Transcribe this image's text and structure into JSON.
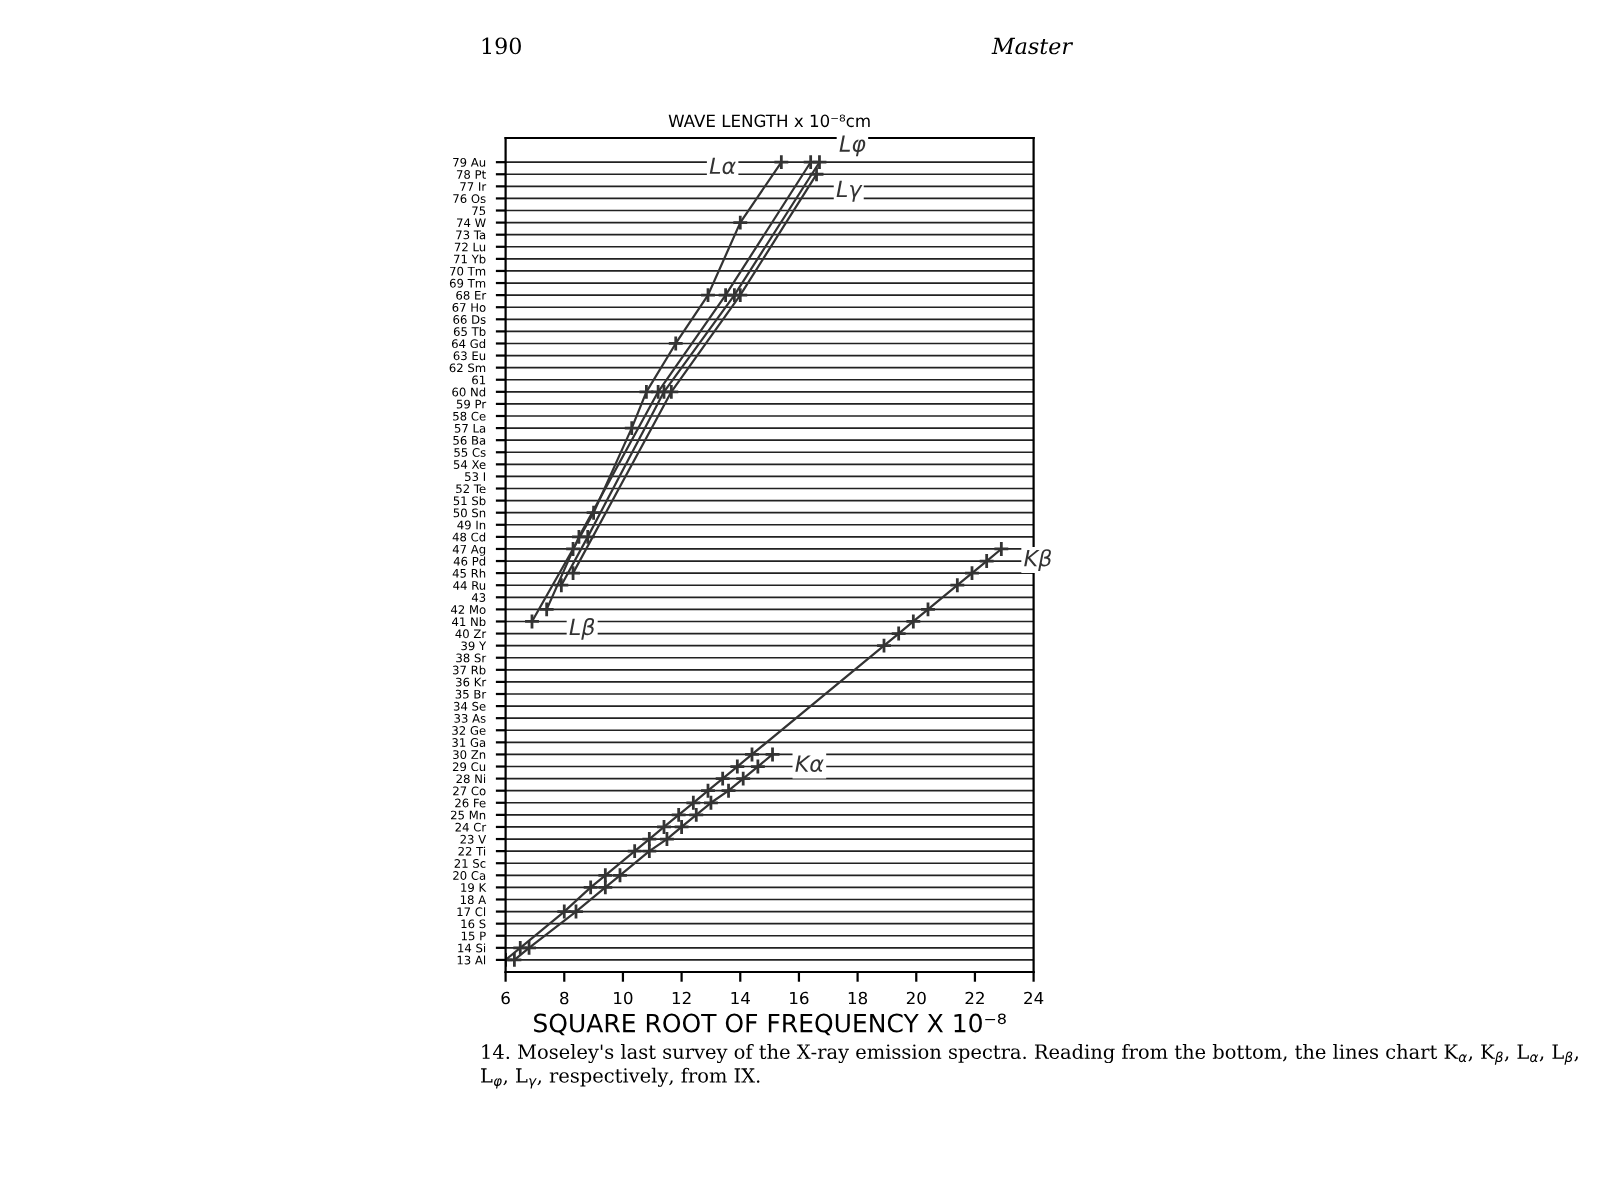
{
  "chart_data": {
    "type": "line",
    "xlabel": "SQUARE ROOT OF FREQUENCY X 10⁻⁸",
    "x2label": "WAVE LENGTH x 10⁻⁸cm",
    "annotations": [
      "190",
      "Master",
      "14. Moseley's last survey of the X-ray emission spectra. Reading from the bottom, the lines chart K$_{α}$, K$_{β}$, L$_{α}$, L$_{β}$, L$_{φ}$, L$_{γ}$, respectively, from IX."
    ],
    "xlim": [
      6,
      24
    ],
    "xticks": [
      6,
      8,
      10,
      12,
      14,
      16,
      18,
      20,
      22,
      24
    ],
    "ylim": [
      12,
      81
    ],
    "yticks": [
      {
        "value": 13,
        "label": "13 Al"
      },
      {
        "value": 14,
        "label": "14 Si"
      },
      {
        "value": 15,
        "label": "15 P"
      },
      {
        "value": 16,
        "label": "16 S"
      },
      {
        "value": 17,
        "label": "17 Cl"
      },
      {
        "value": 18,
        "label": "18 A"
      },
      {
        "value": 19,
        "label": "19 K"
      },
      {
        "value": 20,
        "label": "20 Ca"
      },
      {
        "value": 21,
        "label": "21 Sc"
      },
      {
        "value": 22,
        "label": "22 Ti"
      },
      {
        "value": 23,
        "label": "23 V"
      },
      {
        "value": 24,
        "label": "24 Cr"
      },
      {
        "value": 25,
        "label": "25 Mn"
      },
      {
        "value": 26,
        "label": "26 Fe"
      },
      {
        "value": 27,
        "label": "27 Co"
      },
      {
        "value": 28,
        "label": "28 Ni"
      },
      {
        "value": 29,
        "label": "29 Cu"
      },
      {
        "value": 30,
        "label": "30 Zn"
      },
      {
        "value": 31,
        "label": "31 Ga"
      },
      {
        "value": 32,
        "label": "32 Ge"
      },
      {
        "value": 33,
        "label": "33 As"
      },
      {
        "value": 34,
        "label": "34 Se"
      },
      {
        "value": 35,
        "label": "35 Br"
      },
      {
        "value": 36,
        "label": "36 Kr"
      },
      {
        "value": 37,
        "label": "37 Rb"
      },
      {
        "value": 38,
        "label": "38 Sr"
      },
      {
        "value": 39,
        "label": "39 Y"
      },
      {
        "value": 40,
        "label": "40 Zr"
      },
      {
        "value": 41,
        "label": "41 Nb"
      },
      {
        "value": 42,
        "label": "42 Mo"
      },
      43,
      {
        "value": 44,
        "label": "44 Ru"
      },
      {
        "value": 45,
        "label": "45 Rh"
      },
      {
        "value": 46,
        "label": "46 Pd"
      },
      {
        "value": 47,
        "label": "47 Ag"
      },
      {
        "value": 48,
        "label": "48 Cd"
      },
      {
        "value": 49,
        "label": "49 In"
      },
      {
        "value": 50,
        "label": "50 Sn"
      },
      {
        "value": 51,
        "label": "51 Sb"
      },
      {
        "value": 52,
        "label": "52 Te"
      },
      {
        "value": 53,
        "label": "53 I"
      },
      {
        "value": 54,
        "label": "54 Xe"
      },
      {
        "value": 55,
        "label": "55 Cs"
      },
      {
        "value": 56,
        "label": "56 Ba"
      },
      {
        "value": 57,
        "label": "57 La"
      },
      {
        "value": 58,
        "label": "58 Ce"
      },
      {
        "value": 59,
        "label": "59 Pr"
      },
      {
        "value": 60,
        "label": "60 Nd"
      },
      61,
      {
        "value": 62,
        "label": "62 Sm"
      },
      {
        "value": 63,
        "label": "63 Eu"
      },
      {
        "value": 64,
        "label": "64 Gd"
      },
      {
        "value": 65,
        "label": "65 Tb"
      },
      {
        "value": 66,
        "label": "66 Ds"
      },
      {
        "value": 67,
        "label": "67 Ho"
      },
      {
        "value": 68,
        "label": "68 Er"
      },
      {
        "value": 69,
        "label": "69 Tm"
      },
      {
        "value": 70,
        "label": "70 Tm"
      },
      {
        "value": 71,
        "label": "71 Yb"
      },
      {
        "value": 72,
        "label": "72 Lu"
      },
      {
        "value": 73,
        "label": "73 Ta"
      },
      {
        "value": 74,
        "label": "74 W"
      },
      75,
      {
        "value": 76,
        "label": "76 Os"
      },
      {
        "value": 77,
        "label": "77 Ir"
      },
      {
        "value": 78,
        "label": "78 Pt"
      },
      {
        "value": 79,
        "label": "79 Au"
      }
    ],
    "grid": "y",
    "marker": "cross",
    "line_style": "solid",
    "series": [
      {
        "name": "Kα",
        "color": "#333333",
        "x": [
          6.3,
          6.8,
          8.4,
          9.4,
          9.9,
          10.9,
          11.5,
          12.0,
          12.5,
          13.0,
          13.6,
          14.1,
          14.6,
          15.1
        ],
        "values": [
          13,
          14,
          17,
          19,
          20,
          22,
          23,
          24,
          25,
          26,
          27,
          28,
          29,
          30
        ]
      },
      {
        "name": "Kβ",
        "color": "#333333",
        "x": [
          6.0,
          6.5,
          8.0,
          8.9,
          9.4,
          10.4,
          10.9,
          11.4,
          11.9,
          12.4,
          12.9,
          13.4,
          13.9,
          14.4,
          18.9,
          19.4,
          19.9,
          20.4,
          21.4,
          21.9,
          22.4,
          22.9
        ],
        "values": [
          13,
          14,
          17,
          19,
          20,
          22,
          23,
          24,
          25,
          26,
          27,
          28,
          29,
          30,
          39,
          40,
          41,
          42,
          44,
          45,
          46,
          47
        ]
      },
      {
        "name": "Lα",
        "color": "#333333",
        "x": [
          6.9,
          8.3,
          9.0,
          10.3,
          10.8,
          11.8,
          12.9,
          14.0,
          15.4
        ],
        "values": [
          41,
          47,
          50,
          57,
          60,
          64,
          68,
          74,
          79
        ]
      },
      {
        "name": "Lβ",
        "color": "#333333",
        "x": [
          7.4,
          8.5,
          11.2,
          13.5,
          16.4
        ],
        "values": [
          42,
          48,
          60,
          68,
          79
        ]
      },
      {
        "name": "Lφ",
        "color": "#333333",
        "x": [
          7.9,
          8.8,
          11.4,
          13.8,
          16.7
        ],
        "values": [
          44,
          48,
          60,
          68,
          79
        ]
      },
      {
        "name": "Lγ",
        "color": "#333333",
        "x": [
          8.3,
          11.65,
          14.0,
          16.6
        ],
        "values": [
          45,
          60,
          68,
          78
        ]
      }
    ]
  }
}
